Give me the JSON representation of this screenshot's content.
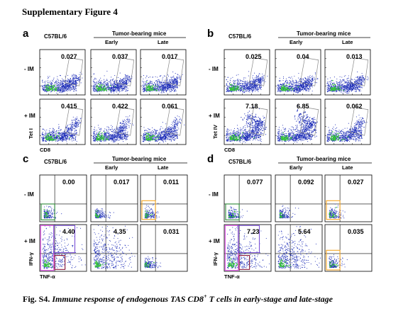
{
  "figure_title": "Supplementary Figure 4",
  "caption": {
    "prefix": "Fig. S4.",
    "text": "Immune response of endogenous TAS CD8",
    "superscript": "+",
    "text_after": "T cells in early-stage and late-stage"
  },
  "panels": {
    "a": {
      "label": "a",
      "strain": "C57BL/6",
      "group": "Tumor-bearing mice",
      "early": "Early",
      "late": "Late",
      "row_top": "- IM",
      "row_bottom": "+ IM",
      "y_axis": "Tet I",
      "x_axis": "CD8",
      "values_top": [
        "0.027",
        "0.037",
        "0.017"
      ],
      "values_bottom": [
        "0.415",
        "0.422",
        "0.061"
      ]
    },
    "b": {
      "label": "b",
      "strain": "C57BL/6",
      "group": "Tumor-bearing mice",
      "early": "Early",
      "late": "Late",
      "row_top": "- IM",
      "row_bottom": "+ IM",
      "y_axis": "Tet IV",
      "x_axis": "CD8",
      "values_top": [
        "0.025",
        "0.04",
        "0.013"
      ],
      "values_bottom": [
        "7.18",
        "6.85",
        "0.062"
      ]
    },
    "c": {
      "label": "c",
      "strain": "C57BL/6",
      "group": "Tumor-bearing mice",
      "early": "Early",
      "late": "Late",
      "row_top": "- IM",
      "row_bottom": "+ IM",
      "y_axis": "IFN-γ",
      "x_axis": "TNF-α",
      "values_top": [
        "0.00",
        "0.017",
        "0.011"
      ],
      "values_bottom": [
        "4.40",
        "4.35",
        "0.031"
      ]
    },
    "d": {
      "label": "d",
      "strain": "C57BL/6",
      "group": "Tumor-bearing mice",
      "early": "Early",
      "late": "Late",
      "row_top": "- IM",
      "row_bottom": "+ IM",
      "y_axis": "IFN-γ",
      "x_axis": "TNF-α",
      "values_top": [
        "0.077",
        "0.092",
        "0.027"
      ],
      "values_bottom": [
        "7.23",
        "5.64",
        "0.035"
      ]
    }
  },
  "colors": {
    "dot": "#1f2fb8",
    "dense_core": "#36c43a",
    "gate": "#888888",
    "gate_orange": "#f5a623",
    "gate_magenta": "#e04ae8",
    "gate_purple": "#7b4fd6",
    "gate_maroon": "#8a1a3a",
    "gate_green": "#2e8b3a"
  }
}
